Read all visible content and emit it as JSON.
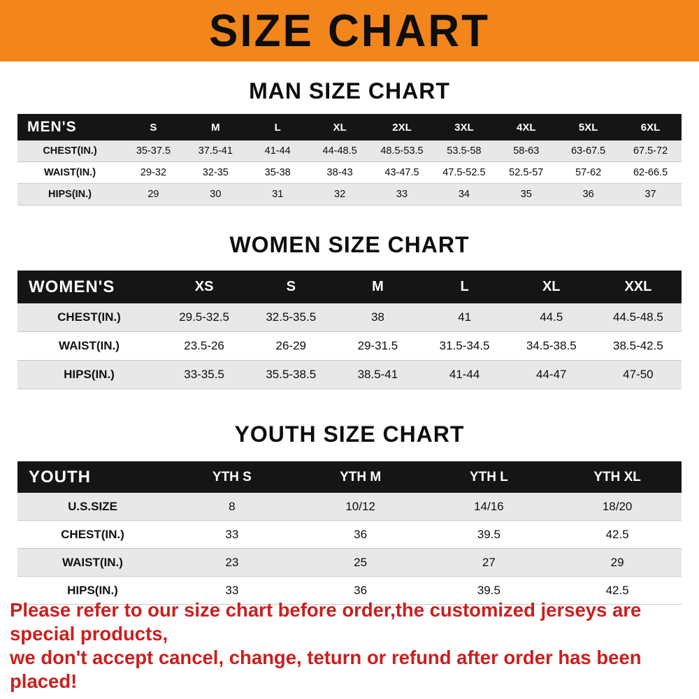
{
  "banner": {
    "title": "SIZE CHART",
    "bg_color": "#f2861b"
  },
  "sections": [
    {
      "heading": "MAN SIZE CHART",
      "table_label": "MEN'S",
      "columns": [
        "S",
        "M",
        "L",
        "XL",
        "2XL",
        "3XL",
        "4XL",
        "5XL",
        "6XL"
      ],
      "rows": [
        {
          "label": "CHEST(IN.)",
          "values": [
            "35-37.5",
            "37.5-41",
            "41-44",
            "44-48.5",
            "48.5-53.5",
            "53.5-58",
            "58-63",
            "63-67.5",
            "67.5-72"
          ]
        },
        {
          "label": "WAIST(IN.)",
          "values": [
            "29-32",
            "32-35",
            "35-38",
            "38-43",
            "43-47.5",
            "47.5-52.5",
            "52.5-57",
            "57-62",
            "62-66.5"
          ]
        },
        {
          "label": "HIPS(IN.)",
          "values": [
            "29",
            "30",
            "31",
            "32",
            "33",
            "34",
            "35",
            "36",
            "37"
          ]
        }
      ]
    },
    {
      "heading": "WOMEN SIZE CHART",
      "table_label": "WOMEN'S",
      "columns": [
        "XS",
        "S",
        "M",
        "L",
        "XL",
        "XXL"
      ],
      "rows": [
        {
          "label": "CHEST(IN.)",
          "values": [
            "29.5-32.5",
            "32.5-35.5",
            "38",
            "41",
            "44.5",
            "44.5-48.5"
          ]
        },
        {
          "label": "WAIST(IN.)",
          "values": [
            "23.5-26",
            "26-29",
            "29-31.5",
            "31.5-34.5",
            "34.5-38.5",
            "38.5-42.5"
          ]
        },
        {
          "label": "HIPS(IN.)",
          "values": [
            "33-35.5",
            "35.5-38.5",
            "38.5-41",
            "41-44",
            "44-47",
            "47-50"
          ]
        }
      ]
    },
    {
      "heading": "YOUTH SIZE CHART",
      "table_label": "YOUTH",
      "columns": [
        "YTH S",
        "YTH M",
        "YTH L",
        "YTH XL"
      ],
      "rows": [
        {
          "label": "U.S.SIZE",
          "values": [
            "8",
            "10/12",
            "14/16",
            "18/20"
          ]
        },
        {
          "label": "CHEST(IN.)",
          "values": [
            "33",
            "36",
            "39.5",
            "42.5"
          ]
        },
        {
          "label": "WAIST(IN.)",
          "values": [
            "23",
            "25",
            "27",
            "29"
          ]
        },
        {
          "label": "HIPS(IN.)",
          "values": [
            "33",
            "36",
            "39.5",
            "42.5"
          ]
        }
      ]
    }
  ],
  "footer": {
    "line1": "Please refer to our size chart before order,the customized jerseys are special products,",
    "line2": "we don't accept cancel, change, teturn or refund after order has been placed!",
    "color": "#cb1f1e"
  }
}
